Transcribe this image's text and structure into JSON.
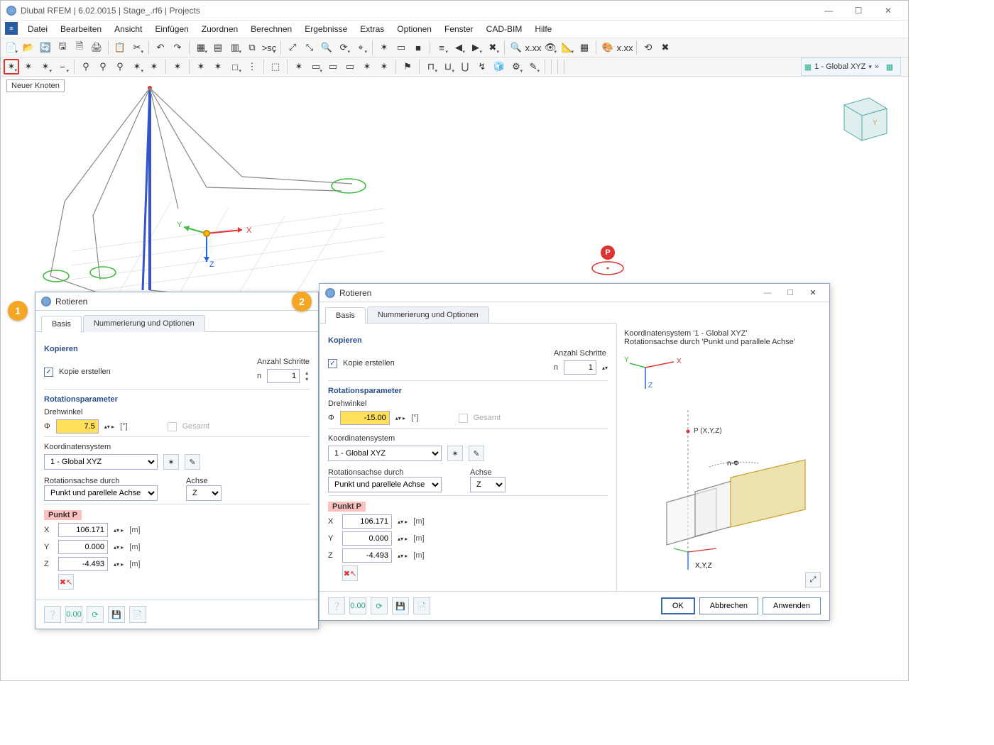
{
  "window": {
    "title": "Dlubal RFEM | 6.02.0015 | Stage_.rf6 | Projects",
    "min": "—",
    "max": "☐",
    "close": "✕",
    "colors": {
      "accent": "#2a4f8a",
      "highlight_red": "#e03030",
      "badge": "#f5a623",
      "hl_yellow": "#ffe05a",
      "pink": "#ffc0c0"
    }
  },
  "menubar": [
    "Datei",
    "Bearbeiten",
    "Ansicht",
    "Einfügen",
    "Zuordnen",
    "Berechnen",
    "Ergebnisse",
    "Extras",
    "Optionen",
    "Fenster",
    "CAD-BIM",
    "Hilfe"
  ],
  "toolbar1_glyphs": [
    "📄",
    "📂",
    "🔄",
    "🖫",
    "🗎",
    "🖨",
    "",
    "📋",
    "✂",
    "",
    "↶",
    "↷",
    "",
    "▦",
    "▤",
    "▥",
    "⧉",
    ">sc",
    "",
    "⤢",
    "⤡",
    "🔍",
    "⟳",
    "⌖",
    "",
    "✶",
    "▭",
    "■",
    "",
    "≡",
    "◀",
    "▶",
    "✖",
    "",
    "🔍",
    "x.xx",
    "👁",
    "📐",
    "▦",
    "",
    "🎨",
    "x.xx",
    "",
    "⟲",
    "✖"
  ],
  "toolbar2_glyphs": [
    "✶",
    "✶",
    "✶",
    "⎯",
    "",
    "⚲",
    "⚲",
    "⚲",
    "✶",
    "✶",
    "",
    "✶",
    "",
    "✶",
    "✶",
    "□",
    "⋮",
    "",
    "⬚",
    "",
    "✶",
    "▭",
    "▭",
    "▭",
    "✶",
    "✶",
    "",
    "⚑",
    "",
    "⊓",
    "⊔",
    "⋃",
    "↯",
    "🧊",
    "⚙",
    "✎",
    "",
    "",
    "",
    ""
  ],
  "coord_selector": "1 - Global XYZ",
  "tooltip": "Neuer Knoten",
  "dlg_common": {
    "title": "Rotieren",
    "tabs": [
      "Basis",
      "Nummerierung und Optionen"
    ],
    "grp_copy": "Kopieren",
    "copy_chk": "Kopie erstellen",
    "steps_lbl": "Anzahl Schritte",
    "steps_sym": "n",
    "steps_val": "1",
    "grp_rot": "Rotationsparameter",
    "angle_lbl": "Drehwinkel",
    "angle_sym": "Φ",
    "angle_unit": "[°]",
    "total_lbl": "Gesamt",
    "cs_lbl": "Koordinatensystem",
    "cs_val": "1 - Global XYZ",
    "axis_lbl": "Rotationsachse durch",
    "axis_val": "Punkt und parellele Achse",
    "axis2_lbl": "Achse",
    "axis2_val": "Z",
    "pt_hdr": "Punkt P",
    "coord_x_lbl": "X",
    "coord_y_lbl": "Y",
    "coord_z_lbl": "Z",
    "coord_x": "106.171",
    "coord_y": "0.000",
    "coord_z": "-4.493",
    "coord_unit": "[m]",
    "btn_ok": "OK",
    "btn_cancel": "Abbrechen",
    "btn_apply": "Anwenden"
  },
  "dlg1": {
    "angle_val": "7.5"
  },
  "dlg2": {
    "angle_val": "-15.00",
    "preview_l1": "Koordinatensystem '1 - Global XYZ'",
    "preview_l2": "Rotationsachse durch 'Punkt und parallele Achse'",
    "diag_p": "P (X,Y,Z)",
    "diag_phi": "n·Φ",
    "diag_xyz": "X,Y,Z"
  },
  "model_axes": {
    "x": "X",
    "y": "Y",
    "z": "Z"
  },
  "p_badge": "P"
}
